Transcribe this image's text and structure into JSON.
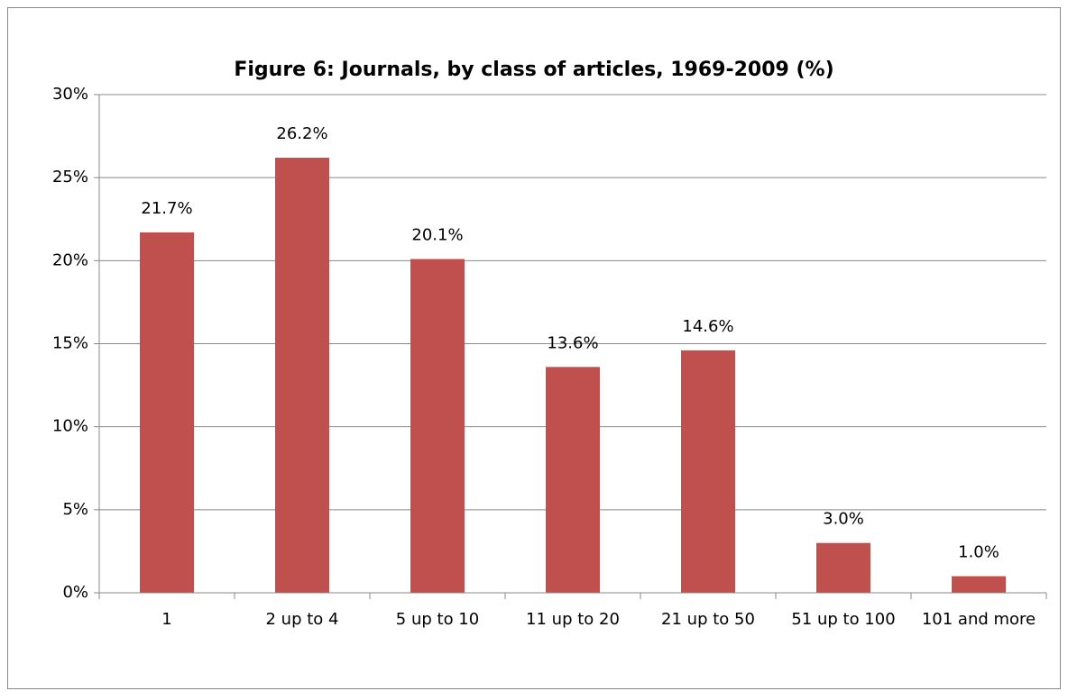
{
  "chart_data": {
    "type": "bar",
    "title": "Figure 6:  Journals, by class of articles, 1969-2009 (%)",
    "categories": [
      "1",
      "2 up to 4",
      "5 up to 10",
      "11 up to 20",
      "21 up to 50",
      "51 up to 100",
      "101 and more"
    ],
    "values": [
      21.7,
      26.2,
      20.1,
      13.6,
      14.6,
      3.0,
      1.0
    ],
    "value_labels": [
      "21.7%",
      "26.2%",
      "20.1%",
      "13.6%",
      "14.6%",
      "3.0%",
      "1.0%"
    ],
    "color": "#c0504d",
    "ylim": [
      0,
      30
    ],
    "yticks": [
      {
        "value": 0,
        "label": "0%"
      },
      {
        "value": 5,
        "label": "5%"
      },
      {
        "value": 10,
        "label": "10%"
      },
      {
        "value": 15,
        "label": "15%"
      },
      {
        "value": 20,
        "label": "20%"
      },
      {
        "value": 25,
        "label": "25%"
      },
      {
        "value": 30,
        "label": "30%"
      }
    ],
    "grid": true
  }
}
